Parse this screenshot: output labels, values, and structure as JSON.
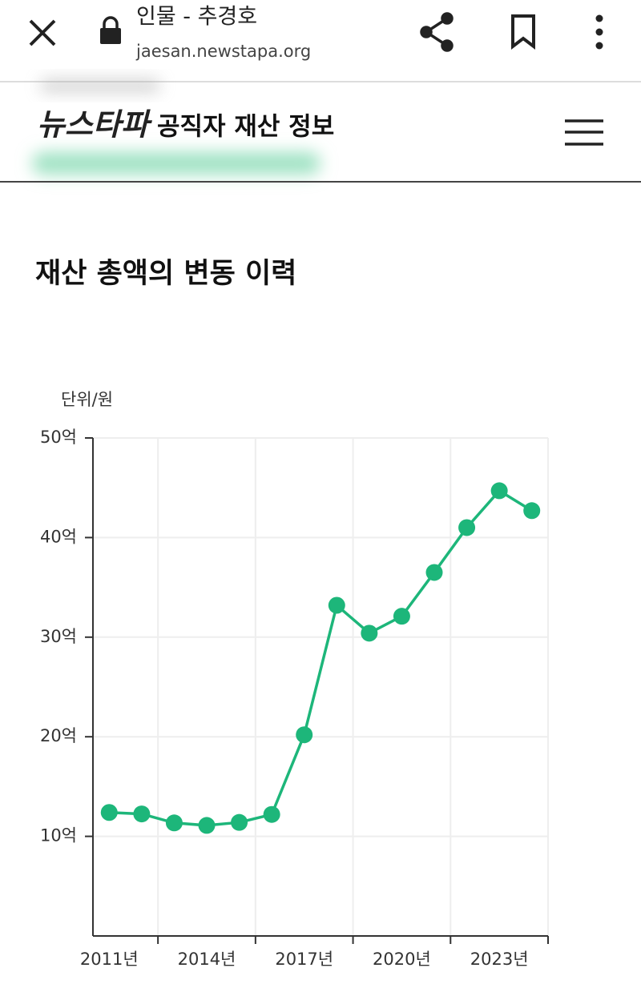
{
  "browser": {
    "title": "인물 - 추경호",
    "url": "jaesan.newstapa.org"
  },
  "header": {
    "logo": "뉴스타파",
    "title": "공직자 재산 정보"
  },
  "section_title": "재산 총액의 변동 이력",
  "chart_data": {
    "type": "line",
    "unit_label": "단위/원",
    "categories": [
      "2011년",
      null,
      null,
      "2014년",
      null,
      null,
      "2017년",
      null,
      null,
      "2020년",
      null,
      null,
      "2023년",
      null
    ],
    "values": [
      12.4,
      12.25,
      11.35,
      11.1,
      11.4,
      12.2,
      20.2,
      33.2,
      30.4,
      32.1,
      36.5,
      41.0,
      44.7,
      42.7
    ],
    "color": "#1db67a",
    "ylim": [
      0,
      50
    ],
    "yticks": [
      {
        "value": 10,
        "label": "10억"
      },
      {
        "value": 20,
        "label": "20억"
      },
      {
        "value": 30,
        "label": "30억"
      },
      {
        "value": 40,
        "label": "40억"
      },
      {
        "value": 50,
        "label": "50억"
      }
    ],
    "grid": true
  }
}
